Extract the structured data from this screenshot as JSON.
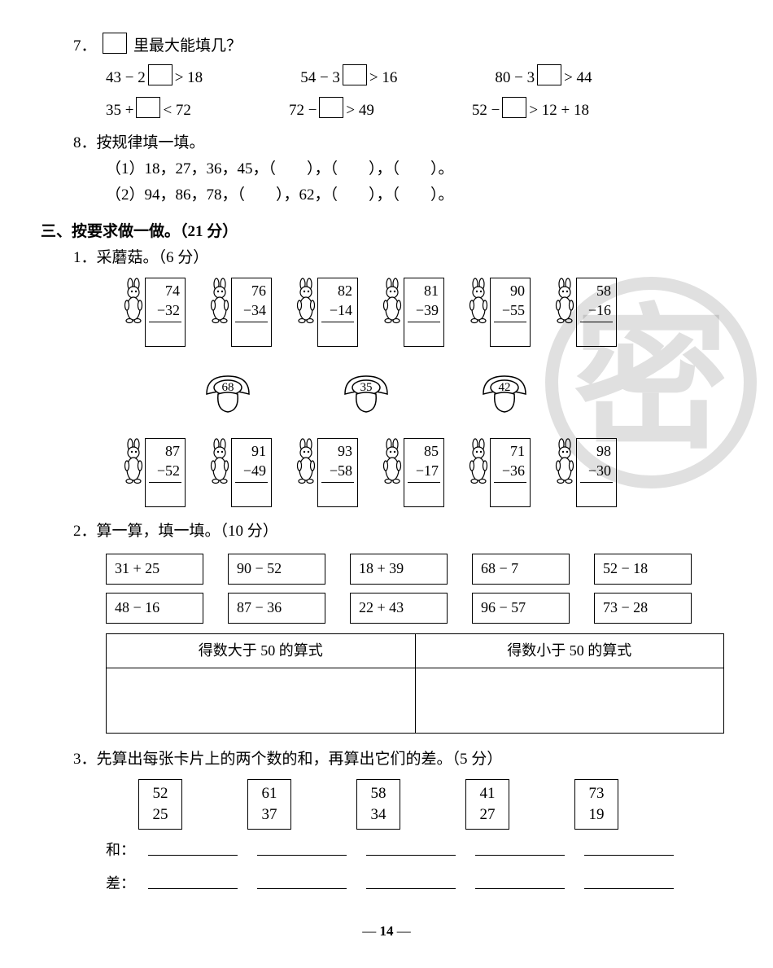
{
  "q7": {
    "number": "7．",
    "title": "里最大能填几？",
    "row1": [
      "43 − 2",
      "> 18",
      "54 − 3",
      "> 16",
      "80 − 3",
      "> 44"
    ],
    "row2": [
      "35 +",
      "< 72",
      "72 −",
      "> 49",
      "52 −",
      "> 12 + 18"
    ]
  },
  "q8": {
    "number": "8．",
    "title": "按规律填一填。",
    "line1": "（1）18，27，36，45，（　　），（　　），（　　）。",
    "line2": "（2）94，86，78，（　　），62，（　　），（　　）。"
  },
  "section3": {
    "title": "三、按要求做一做。（21 分）"
  },
  "s3q1": {
    "number": "1．",
    "title": "采蘑菇。（6 分）",
    "rabbits_top": [
      {
        "a": "74",
        "b": "−32"
      },
      {
        "a": "76",
        "b": "−34"
      },
      {
        "a": "82",
        "b": "−14"
      },
      {
        "a": "81",
        "b": "−39"
      },
      {
        "a": "90",
        "b": "−55"
      },
      {
        "a": "58",
        "b": "−16"
      }
    ],
    "mushrooms": [
      "68",
      "35",
      "42"
    ],
    "rabbits_bottom": [
      {
        "a": "87",
        "b": "−52"
      },
      {
        "a": "91",
        "b": "−49"
      },
      {
        "a": "93",
        "b": "−58"
      },
      {
        "a": "85",
        "b": "−17"
      },
      {
        "a": "71",
        "b": "−36"
      },
      {
        "a": "98",
        "b": "−30"
      }
    ]
  },
  "s3q2": {
    "number": "2．",
    "title": "算一算，填一填。（10 分）",
    "row1": [
      "31 + 25",
      "90 − 52",
      "18 + 39",
      "68 − 7",
      "52 − 18"
    ],
    "row2": [
      "48 − 16",
      "87 − 36",
      "22 + 43",
      "96 − 57",
      "73 − 28"
    ],
    "th1": "得数大于 50 的算式",
    "th2": "得数小于 50 的算式"
  },
  "s3q3": {
    "number": "3．",
    "title": "先算出每张卡片上的两个数的和，再算出它们的差。（5 分）",
    "cards": [
      {
        "a": "52",
        "b": "25"
      },
      {
        "a": "61",
        "b": "37"
      },
      {
        "a": "58",
        "b": "34"
      },
      {
        "a": "41",
        "b": "27"
      },
      {
        "a": "73",
        "b": "19"
      }
    ],
    "sum_label": "和：",
    "diff_label": "差："
  },
  "pagefoot": "14"
}
